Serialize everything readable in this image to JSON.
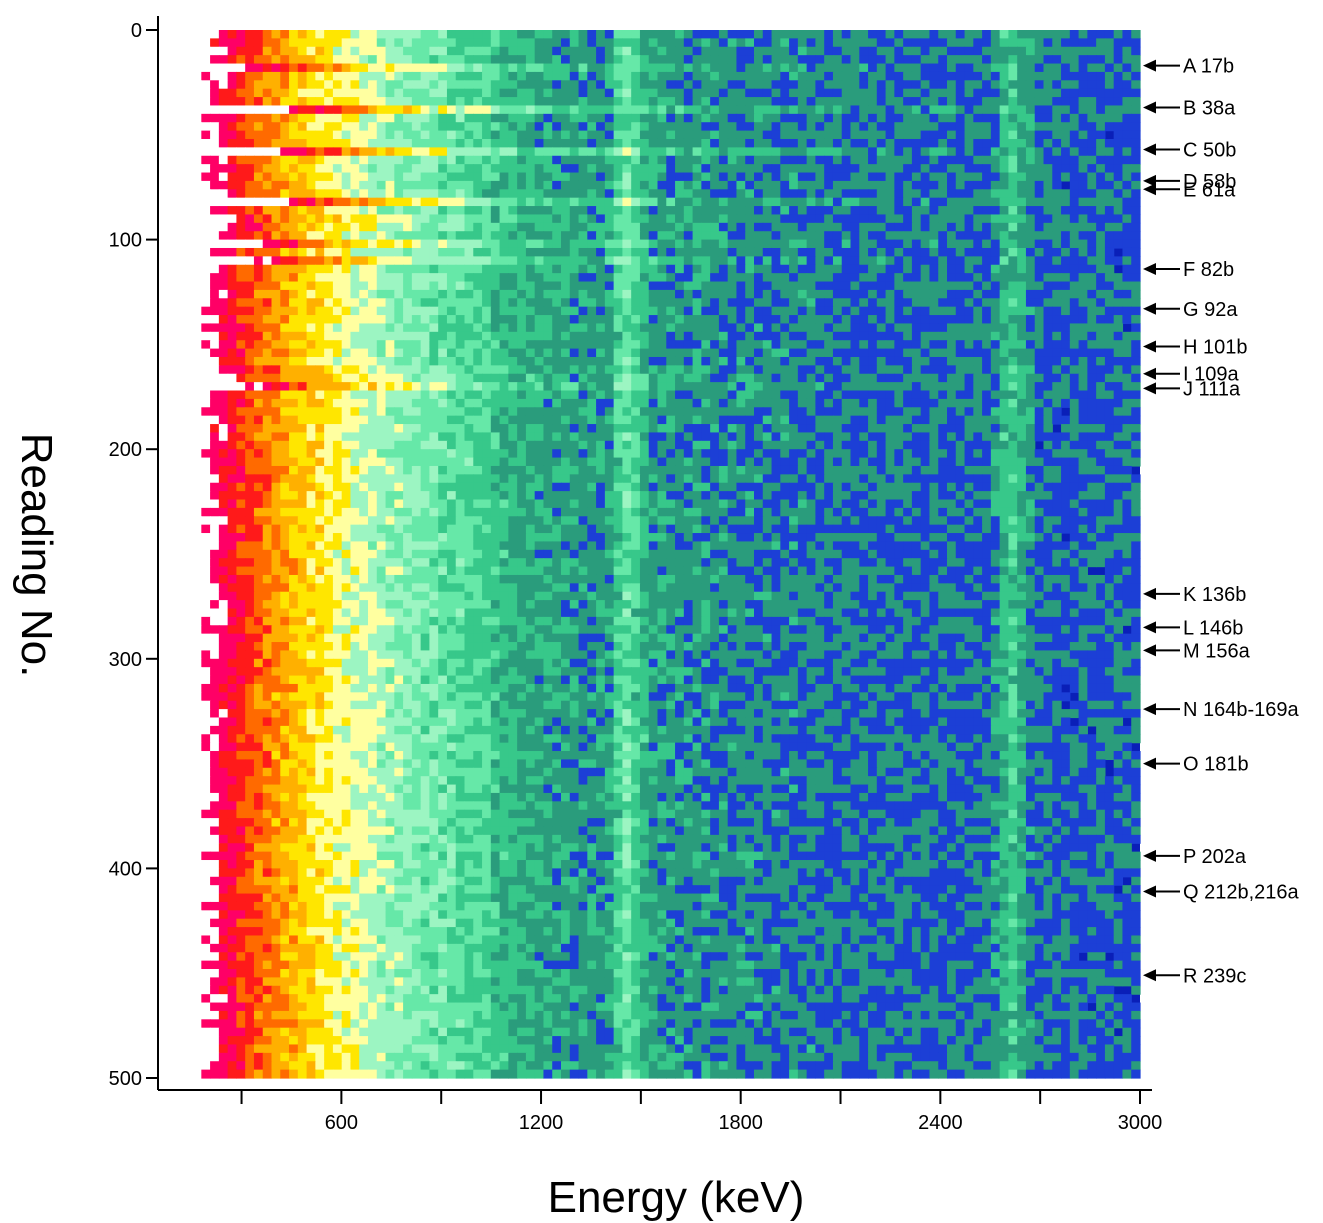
{
  "chart_data": {
    "type": "heatmap",
    "title": "",
    "xlabel": "Energy (keV)",
    "ylabel": "Reading No.",
    "xlim": [
      100,
      3000
    ],
    "ylim": [
      0,
      500
    ],
    "y_inverted": true,
    "x_ticks": [
      600,
      1200,
      1800,
      2400,
      3000
    ],
    "x_minor_ticks": [
      300,
      900,
      1500,
      2100,
      2700
    ],
    "y_ticks": [
      0,
      100,
      200,
      300,
      400,
      500
    ],
    "colormap": [
      "#0a1fb8",
      "#1c3fd6",
      "#2a9c7c",
      "#37c88a",
      "#66e8a8",
      "#9cf5c2",
      "#ffffa0",
      "#ffe600",
      "#ffb000",
      "#ff6a00",
      "#ff1a1a",
      "#ff0066",
      "#ffffff"
    ],
    "features": {
      "bands": [
        {
          "energy": 1460,
          "description": "vertical line"
        },
        {
          "energy": 2614,
          "description": "vertical line"
        }
      ],
      "high_intensity_rows": [
        17,
        38,
        58,
        82,
        92,
        101,
        109,
        111,
        164,
        169
      ]
    },
    "annotations": [
      {
        "label": "A 17b",
        "reading": 17
      },
      {
        "label": "B 38a",
        "reading": 37
      },
      {
        "label": "C 50b",
        "reading": 57
      },
      {
        "label": "D 58b",
        "reading": 72
      },
      {
        "label": "E 61a",
        "reading": 76
      },
      {
        "label": "F 82b",
        "reading": 114
      },
      {
        "label": "G 92a",
        "reading": 133
      },
      {
        "label": "H 101b",
        "reading": 151
      },
      {
        "label": "I 109a",
        "reading": 164
      },
      {
        "label": "J 111a",
        "reading": 171
      },
      {
        "label": "K 136b",
        "reading": 269
      },
      {
        "label": "L 146b",
        "reading": 285
      },
      {
        "label": "M 156a",
        "reading": 296
      },
      {
        "label": "N 164b-169a",
        "reading": 324
      },
      {
        "label": "O 181b",
        "reading": 350
      },
      {
        "label": "P 202a",
        "reading": 394
      },
      {
        "label": "Q 212b,216a",
        "reading": 411
      },
      {
        "label": "R 239c",
        "reading": 451
      }
    ]
  }
}
